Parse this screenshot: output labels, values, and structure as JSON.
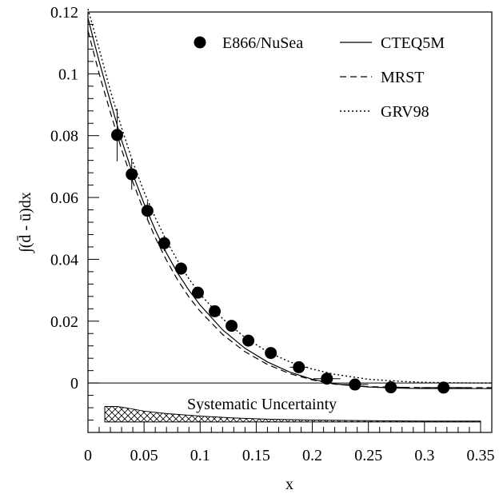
{
  "chart_data": {
    "type": "scatter",
    "xlabel": "x",
    "ylabel": "∫(d̄ - ū)dx",
    "xlim": [
      0,
      0.36
    ],
    "ylim": [
      -0.016,
      0.12
    ],
    "xticks": [
      "0",
      "0.05",
      "0.1",
      "0.15",
      "0.2",
      "0.25",
      "0.3",
      "0.35"
    ],
    "xtick_values": [
      0,
      0.05,
      0.1,
      0.15,
      0.2,
      0.25,
      0.3,
      0.35
    ],
    "yticks": [
      "0",
      "0.02",
      "0.04",
      "0.06",
      "0.08",
      "0.1",
      "0.12"
    ],
    "ytick_values": [
      0,
      0.02,
      0.04,
      0.06,
      0.08,
      0.1,
      0.12
    ],
    "grid": false,
    "legend_placement": "top-right",
    "series": [
      {
        "name": "E866/NuSea",
        "kind": "points",
        "x": [
          0.026,
          0.039,
          0.053,
          0.068,
          0.083,
          0.098,
          0.113,
          0.128,
          0.143,
          0.163,
          0.188,
          0.213,
          0.238,
          0.27,
          0.317
        ],
        "y": [
          0.0802,
          0.0675,
          0.0557,
          0.0452,
          0.037,
          0.0292,
          0.0232,
          0.0185,
          0.0137,
          0.0097,
          0.0051,
          0.0014,
          -0.0005,
          -0.0014,
          -0.0015
        ],
        "yerr": [
          0.0085,
          0.005,
          0.003,
          0.0025,
          0.002,
          0.0018,
          0.0015,
          0.0013,
          0.0012,
          0.001,
          0.0008,
          0.0008,
          0.0008,
          0.0008,
          0.0008
        ],
        "xerr": [
          0.004,
          0.004,
          0.004,
          0.004,
          0.004,
          0.004,
          0.004,
          0.004,
          0.004,
          0.005,
          0.008,
          0.012,
          0.012,
          0.014,
          0.02
        ]
      },
      {
        "name": "CTEQ5M",
        "kind": "line",
        "style": "solid",
        "x": [
          0,
          0.01,
          0.02,
          0.03,
          0.04,
          0.05,
          0.06,
          0.07,
          0.08,
          0.09,
          0.1,
          0.12,
          0.14,
          0.16,
          0.18,
          0.2,
          0.22,
          0.25,
          0.28,
          0.3,
          0.32,
          0.35,
          0.36
        ],
        "y": [
          0.118,
          0.104,
          0.091,
          0.0785,
          0.0675,
          0.058,
          0.0495,
          0.042,
          0.0355,
          0.03,
          0.0252,
          0.0172,
          0.0112,
          0.0068,
          0.0035,
          0.0012,
          -0.0003,
          -0.0013,
          -0.0017,
          -0.0018,
          -0.0018,
          -0.0018,
          -0.0018
        ]
      },
      {
        "name": "MRST",
        "kind": "line",
        "style": "dashed",
        "x": [
          0,
          0.01,
          0.02,
          0.03,
          0.04,
          0.05,
          0.06,
          0.07,
          0.08,
          0.09,
          0.1,
          0.12,
          0.14,
          0.16,
          0.18,
          0.2,
          0.22,
          0.25,
          0.28,
          0.3,
          0.32,
          0.35,
          0.36
        ],
        "y": [
          0.114,
          0.1,
          0.0875,
          0.0755,
          0.065,
          0.0555,
          0.047,
          0.0397,
          0.0333,
          0.0278,
          0.0232,
          0.0157,
          0.0101,
          0.006,
          0.003,
          0.001,
          -0.0004,
          -0.0012,
          -0.0014,
          -0.0015,
          -0.0015,
          -0.0015,
          -0.0015
        ]
      },
      {
        "name": "GRV98",
        "kind": "line",
        "style": "dotted",
        "x": [
          0,
          0.01,
          0.02,
          0.03,
          0.04,
          0.05,
          0.06,
          0.07,
          0.08,
          0.09,
          0.1,
          0.12,
          0.14,
          0.16,
          0.18,
          0.2,
          0.22,
          0.25,
          0.28,
          0.3,
          0.32,
          0.35,
          0.36
        ],
        "y": [
          0.121,
          0.108,
          0.0945,
          0.0825,
          0.0715,
          0.0618,
          0.0535,
          0.046,
          0.0395,
          0.0337,
          0.0287,
          0.0208,
          0.0147,
          0.0101,
          0.0068,
          0.0045,
          0.0028,
          0.0012,
          0.0005,
          0.0002,
          0.0001,
          0.0,
          0.0
        ]
      }
    ],
    "annotations": [
      "Systematic Uncertainty"
    ],
    "systematic_band": {
      "label": "Systematic Uncertainty",
      "x": [
        0.015,
        0.026,
        0.035,
        0.05,
        0.07,
        0.1,
        0.13,
        0.16,
        0.2,
        0.25,
        0.3,
        0.35
      ],
      "height": [
        0.005,
        0.005,
        0.0045,
        0.0035,
        0.0027,
        0.0019,
        0.0013,
        0.0009,
        0.0006,
        0.0004,
        0.0003,
        0.0003
      ]
    }
  }
}
